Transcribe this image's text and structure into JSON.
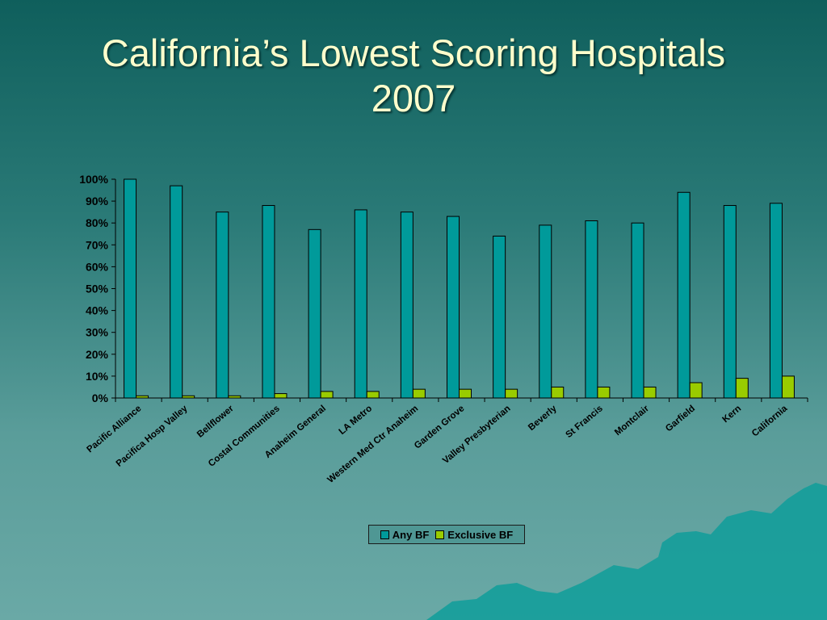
{
  "slide": {
    "title_line1": "California’s Lowest Scoring Hospitals",
    "title_line2": "2007"
  },
  "colors": {
    "any_bf": "#009a9a",
    "exclusive_bf": "#99cc00"
  },
  "chart_data": {
    "type": "bar",
    "categories": [
      "Pacific Alliance",
      "Pacifica Hosp Valley",
      "Bellflower",
      "Costal Communities",
      "Anaheim General",
      "LA Metro",
      "Western Med Ctr Anaheim",
      "Garden Grove",
      "Valley Presbyterian",
      "Beverly",
      "St Francis",
      "Montclair",
      "Garfield",
      "Kern",
      "California"
    ],
    "series": [
      {
        "name": "Any BF",
        "values": [
          100,
          97,
          85,
          88,
          77,
          86,
          85,
          83,
          74,
          79,
          81,
          80,
          94,
          88,
          89
        ]
      },
      {
        "name": "Exclusive BF",
        "values": [
          1,
          1,
          1,
          2,
          3,
          3,
          4,
          4,
          4,
          5,
          5,
          5,
          7,
          9,
          10
        ]
      }
    ],
    "yticks": [
      "0%",
      "10%",
      "20%",
      "30%",
      "40%",
      "50%",
      "60%",
      "70%",
      "80%",
      "90%",
      "100%"
    ],
    "ylim": [
      0,
      100
    ],
    "grid": false,
    "legend": "bottom-center"
  }
}
